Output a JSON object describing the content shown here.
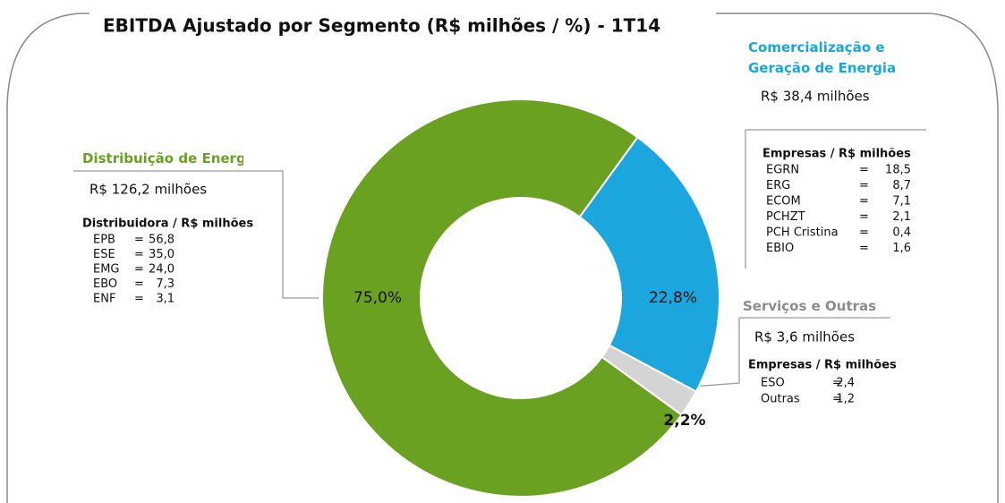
{
  "chart_data": {
    "type": "pie",
    "donut": true,
    "title": "EBITDA Ajustado por Segmento (R$ milhões / %) - 1T14",
    "categories": [
      "Distribuição de Energia",
      "Comercialização e Geração de Energia",
      "Serviços e Outras"
    ],
    "values": [
      75.0,
      22.8,
      2.2
    ],
    "value_labels": [
      "75,0%",
      "22,8%",
      "2,2%"
    ],
    "colors": [
      "#6aa121",
      "#1ba7de",
      "#d4d4d4"
    ],
    "label_colors": [
      "#6aa121",
      "#1ba7de",
      "#8c8c8c"
    ],
    "details": [
      {
        "total": "R$ 126,2 milhões",
        "header": "Distribuidora / R$ milhões",
        "items": [
          {
            "name": "EPB",
            "value": "56,8"
          },
          {
            "name": "ESE",
            "value": "35,0"
          },
          {
            "name": "EMG",
            "value": "24,0"
          },
          {
            "name": "EBO",
            "value": "7,3"
          },
          {
            "name": "ENF",
            "value": "3,1"
          }
        ]
      },
      {
        "total": "R$ 38,4 milhões",
        "header": "Empresas / R$ milhões",
        "items": [
          {
            "name": "EGRN",
            "value": "18,5"
          },
          {
            "name": "ERG",
            "value": "8,7"
          },
          {
            "name": "ECOM",
            "value": "7,1"
          },
          {
            "name": "PCHZT",
            "value": "2,1"
          },
          {
            "name": "PCH Cristina",
            "value": "0,4"
          },
          {
            "name": "EBIO",
            "value": "1,6"
          }
        ]
      },
      {
        "total": "R$ 3,6 milhões",
        "header": "Empresas / R$ milhões",
        "items": [
          {
            "name": "ESO",
            "value": "2,4"
          },
          {
            "name": "Outras",
            "value": "1,2"
          }
        ]
      }
    ]
  }
}
